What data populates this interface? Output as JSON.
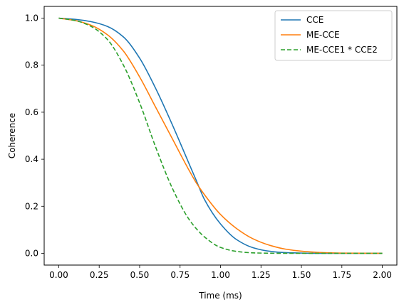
{
  "chart_data": {
    "type": "line",
    "title": "",
    "xlabel": "Time (ms)",
    "ylabel": "Coherence",
    "xlim": [
      -0.09,
      2.09
    ],
    "ylim": [
      -0.05,
      1.05
    ],
    "x_ticks": [
      0.0,
      0.25,
      0.5,
      0.75,
      1.0,
      1.25,
      1.5,
      1.75,
      2.0
    ],
    "x_tick_labels": [
      "0.00",
      "0.25",
      "0.50",
      "0.75",
      "1.00",
      "1.25",
      "1.50",
      "1.75",
      "2.00"
    ],
    "y_ticks": [
      0.0,
      0.2,
      0.4,
      0.6,
      0.8,
      1.0
    ],
    "y_tick_labels": [
      "0.0",
      "0.2",
      "0.4",
      "0.6",
      "0.8",
      "1.0"
    ],
    "grid": false,
    "legend_position": "top-right",
    "x": [
      0.0,
      0.1,
      0.2,
      0.3,
      0.4,
      0.5,
      0.6,
      0.7,
      0.8,
      0.85,
      0.9,
      1.0,
      1.1,
      1.2,
      1.3,
      1.4,
      1.5,
      1.6,
      1.75,
      2.0
    ],
    "series": [
      {
        "name": "CCE",
        "color": "#1f77b4",
        "dash": "solid",
        "values": [
          1.0,
          0.995,
          0.985,
          0.965,
          0.92,
          0.83,
          0.7,
          0.55,
          0.39,
          0.31,
          0.23,
          0.125,
          0.058,
          0.024,
          0.009,
          0.003,
          0.001,
          0.0,
          0.0,
          0.0
        ]
      },
      {
        "name": "ME-CCE",
        "color": "#ff7f0e",
        "dash": "solid",
        "values": [
          1.0,
          0.99,
          0.97,
          0.93,
          0.86,
          0.75,
          0.62,
          0.49,
          0.36,
          0.3,
          0.25,
          0.165,
          0.105,
          0.062,
          0.035,
          0.018,
          0.009,
          0.004,
          0.001,
          0.0
        ]
      },
      {
        "name": "ME-CCE1 * CCE2",
        "color": "#2ca02c",
        "dash": "dashed",
        "values": [
          1.0,
          0.99,
          0.965,
          0.91,
          0.8,
          0.64,
          0.45,
          0.28,
          0.15,
          0.105,
          0.07,
          0.025,
          0.008,
          0.002,
          0.0005,
          0.0,
          0.0,
          0.0,
          0.0,
          0.0
        ]
      }
    ]
  }
}
